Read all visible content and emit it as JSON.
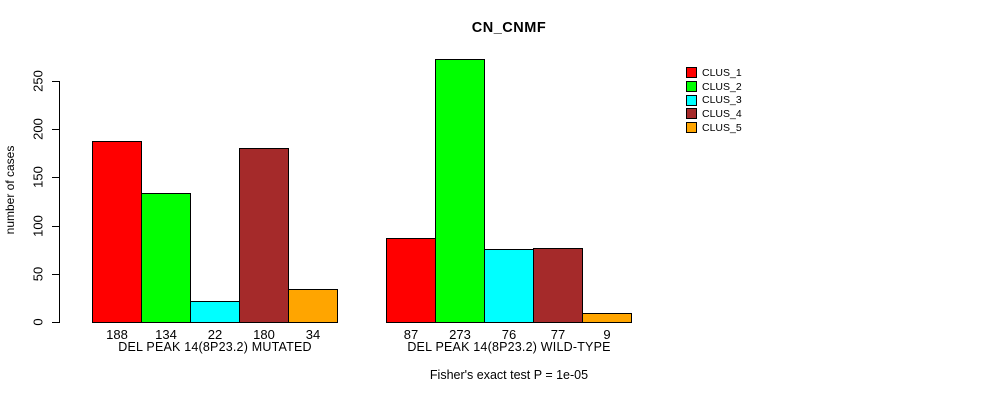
{
  "chart_data": {
    "type": "bar",
    "title": "CN_CNMF",
    "ylabel": "number of cases",
    "xlabel": "",
    "annotation": "Fisher's exact test P = 1e-05",
    "categories": [
      "DEL PEAK 14(8P23.2) MUTATED",
      "DEL PEAK 14(8P23.2) WILD-TYPE"
    ],
    "series": [
      {
        "name": "CLUS_1",
        "color": "#FF0000",
        "values": [
          188,
          87
        ]
      },
      {
        "name": "CLUS_2",
        "color": "#00FF00",
        "values": [
          134,
          273
        ]
      },
      {
        "name": "CLUS_3",
        "color": "#00FFFF",
        "values": [
          22,
          76
        ]
      },
      {
        "name": "CLUS_4",
        "color": "#A52A2A",
        "values": [
          180,
          77
        ]
      },
      {
        "name": "CLUS_5",
        "color": "#FFA500",
        "values": [
          34,
          9
        ]
      }
    ],
    "yticks": [
      0,
      50,
      100,
      150,
      200,
      250
    ],
    "ylim": [
      0,
      275
    ],
    "grid": false,
    "bar_value_labels_shown": true,
    "legend_position": "right-outside",
    "background_color": "#FFFFFF",
    "axis_color": "#000000"
  }
}
